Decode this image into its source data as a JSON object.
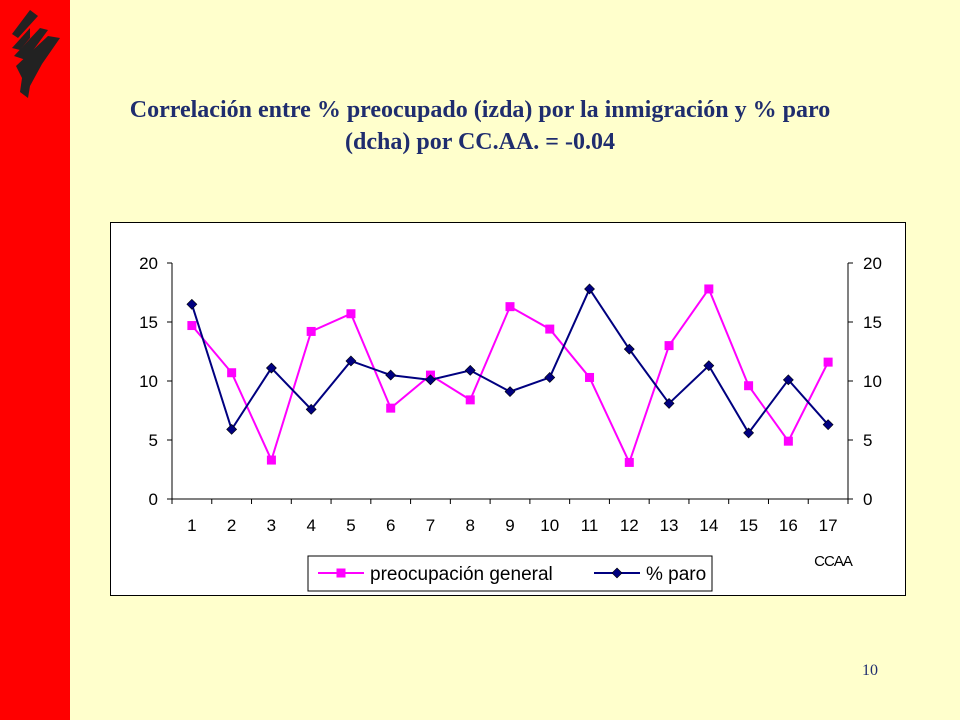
{
  "slide": {
    "title_line1": "Correlación entre % preocupado (izda) por la inmigración y % paro",
    "title_line2": "(dcha) por CC.AA. = -0.04",
    "number": "10",
    "logo_icon": "stacked-chevron-logo-icon",
    "colors": {
      "background": "#FFFFCC",
      "sidebar": "#FF0000",
      "title": "#1F2D6E"
    }
  },
  "chart_data": {
    "type": "line",
    "categories": [
      "1",
      "2",
      "3",
      "4",
      "5",
      "6",
      "7",
      "8",
      "9",
      "10",
      "11",
      "12",
      "13",
      "14",
      "15",
      "16",
      "17"
    ],
    "xlabel": "CCAA",
    "ylabel": "",
    "ylim": [
      0,
      20
    ],
    "y2lim": [
      0,
      20
    ],
    "yticks": [
      "0",
      "5",
      "10",
      "15",
      "20"
    ],
    "y2ticks": [
      "0",
      "5",
      "10",
      "15",
      "20"
    ],
    "grid": false,
    "legend_position": "bottom",
    "series": [
      {
        "name": "preocupación general",
        "axis": "left",
        "marker": "square",
        "color": "#FF00FF",
        "values": [
          14.7,
          10.7,
          3.3,
          14.2,
          15.7,
          7.7,
          10.5,
          8.4,
          16.3,
          14.4,
          10.3,
          3.1,
          13.0,
          17.8,
          9.6,
          4.9,
          11.6
        ]
      },
      {
        "name": "% paro",
        "axis": "right",
        "marker": "diamond",
        "color": "#000080",
        "values": [
          16.5,
          5.9,
          11.1,
          7.6,
          11.7,
          10.5,
          10.1,
          10.9,
          9.1,
          10.3,
          17.8,
          12.7,
          8.1,
          11.3,
          5.6,
          10.1,
          6.3
        ]
      }
    ]
  }
}
